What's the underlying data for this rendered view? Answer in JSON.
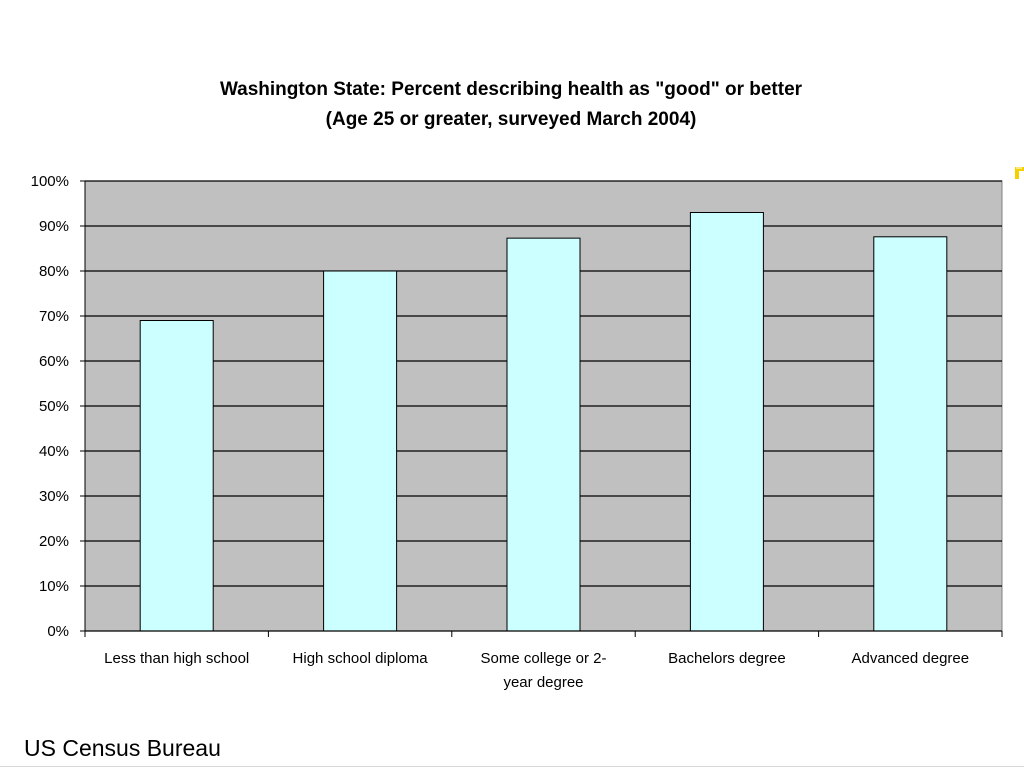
{
  "chart_data": {
    "type": "bar",
    "title": "Washington State: Percent describing health as \"good\" or better",
    "subtitle": "(Age 25 or greater, surveyed March 2004)",
    "categories": [
      [
        "Less than high school"
      ],
      [
        "High school diploma"
      ],
      [
        "Some college or 2-",
        "year degree"
      ],
      [
        "Bachelors degree"
      ],
      [
        "Advanced degree"
      ]
    ],
    "values": [
      69,
      80,
      87.3,
      93,
      87.6
    ],
    "ylim": [
      0,
      100
    ],
    "ytick_step": 10,
    "ytick_suffix": "%",
    "grid": true,
    "legend": "none",
    "colors": {
      "plot_background": "#c0c0c0",
      "bar_fill": "#ccffff",
      "bar_stroke": "#000000",
      "gridline": "#000000"
    }
  },
  "footer": {
    "source": "US Census Bureau"
  }
}
